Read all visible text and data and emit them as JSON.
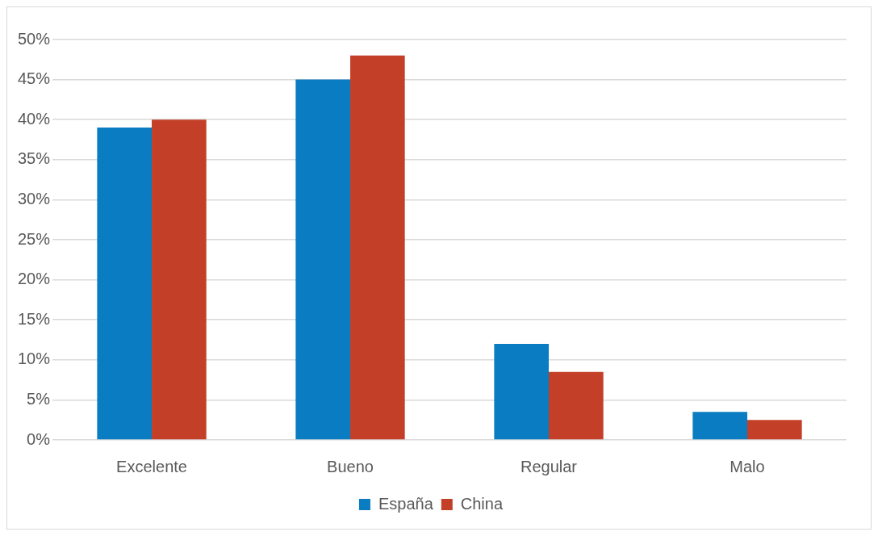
{
  "chart_data": {
    "type": "bar",
    "categories": [
      "Excelente",
      "Bueno",
      "Regular",
      "Malo"
    ],
    "series": [
      {
        "name": "España",
        "color": "#0a7cc1",
        "values": [
          39,
          45,
          12,
          3.5
        ]
      },
      {
        "name": "China",
        "color": "#c43f28",
        "values": [
          40,
          48,
          8.5,
          2.5
        ]
      }
    ],
    "ylim": [
      0,
      50
    ],
    "yticks": [
      {
        "value": 0,
        "label": "0%"
      },
      {
        "value": 5,
        "label": "5%"
      },
      {
        "value": 10,
        "label": "10%"
      },
      {
        "value": 15,
        "label": "15%"
      },
      {
        "value": 20,
        "label": "20%"
      },
      {
        "value": 25,
        "label": "25%"
      },
      {
        "value": 30,
        "label": "30%"
      },
      {
        "value": 35,
        "label": "35%"
      },
      {
        "value": 40,
        "label": "40%"
      },
      {
        "value": 45,
        "label": "45%"
      },
      {
        "value": 50,
        "label": "50%"
      }
    ],
    "grid": "y",
    "legend": "bottom"
  }
}
